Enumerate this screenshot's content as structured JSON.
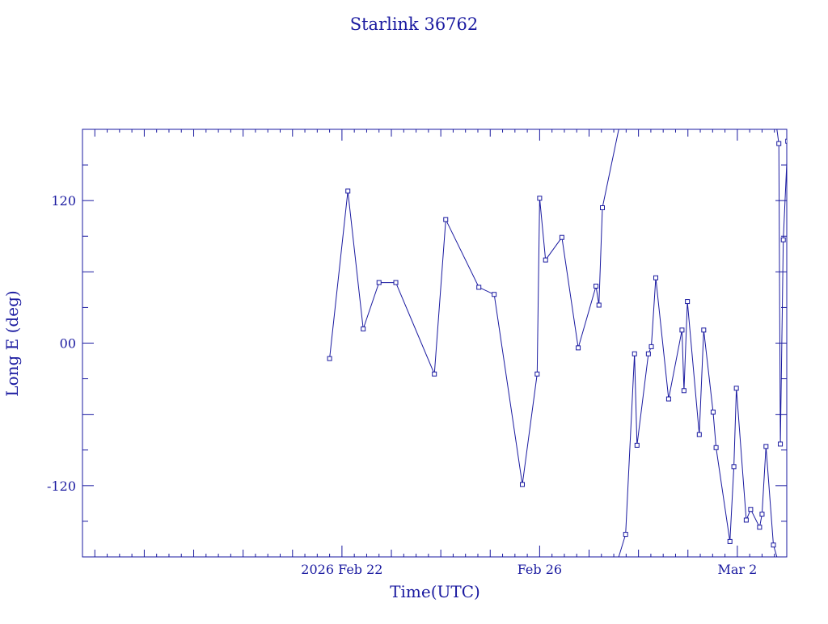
{
  "chart_data": {
    "type": "line",
    "title": "Starlink 36762",
    "xlabel": "Time(UTC)",
    "ylabel": "Long E (deg)",
    "x_range_days": [
      -5.25,
      9.0
    ],
    "x_ticks": [
      {
        "day": 0,
        "label": "2026 Feb 22"
      },
      {
        "day": 4,
        "label": "Feb 26"
      },
      {
        "day": 8,
        "label": "Mar  2"
      }
    ],
    "ylim": [
      -180,
      180
    ],
    "y_ticks": [
      {
        "value": 120,
        "label": "120"
      },
      {
        "value": 0,
        "label": "00"
      },
      {
        "value": -120,
        "label": "-120"
      }
    ],
    "grid": false,
    "color": "#1a1aa0",
    "series": [
      {
        "x_days": [
          -0.25,
          0.12,
          0.43,
          0.75,
          1.09,
          1.87,
          2.1,
          2.77,
          3.08,
          3.65,
          3.95,
          4.0,
          4.12,
          4.45,
          4.78,
          5.14,
          5.2,
          5.27,
          5.6
        ],
        "values": [
          -13,
          128,
          12,
          51,
          51,
          -26,
          104,
          47,
          41,
          -119,
          -26,
          122,
          70,
          89,
          -4,
          48,
          32,
          114,
          180
        ]
      },
      {
        "x_days": [
          5.6,
          5.74,
          5.92,
          5.97,
          6.2,
          6.26,
          6.35,
          6.61,
          6.88,
          6.92,
          6.99,
          7.23,
          7.32,
          7.51,
          7.57,
          7.85,
          7.93,
          7.98,
          8.18,
          8.27,
          8.45,
          8.5,
          8.58,
          8.73,
          8.8
        ],
        "values": [
          -180,
          -161,
          -9,
          -86,
          -9,
          -3,
          55,
          -47,
          11,
          -40,
          35,
          -77,
          11,
          -58,
          -88,
          -167,
          -104,
          -38,
          -149,
          -140,
          -155,
          -144,
          -87,
          -170,
          -180
        ]
      },
      {
        "x_days": [
          8.8,
          8.84,
          8.87,
          8.93,
          9.02,
          9.28
        ],
        "values": [
          180,
          168,
          -85,
          87,
          170,
          180
        ]
      }
    ]
  }
}
